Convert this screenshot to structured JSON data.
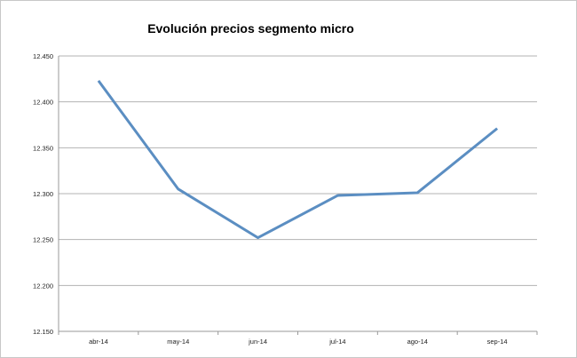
{
  "chart_data": {
    "type": "line",
    "title": "Evolución precios segmento micro",
    "xlabel": "",
    "ylabel": "",
    "categories": [
      "abr-14",
      "may-14",
      "jun-14",
      "jul-14",
      "ago-14",
      "sep-14"
    ],
    "series": [
      {
        "values": [
          12423,
          12305,
          12252,
          12298,
          12301,
          12371
        ],
        "color": "#5b8ec2"
      }
    ],
    "ylim": [
      12150,
      12450
    ],
    "yticks": [
      12150,
      12200,
      12250,
      12300,
      12350,
      12400,
      12450
    ],
    "ytick_labels": [
      "12.150",
      "12.200",
      "12.250",
      "12.300",
      "12.350",
      "12.400",
      "12.450"
    ],
    "grid": true,
    "legend": "none",
    "gridline_color": "#b3b3b3"
  }
}
